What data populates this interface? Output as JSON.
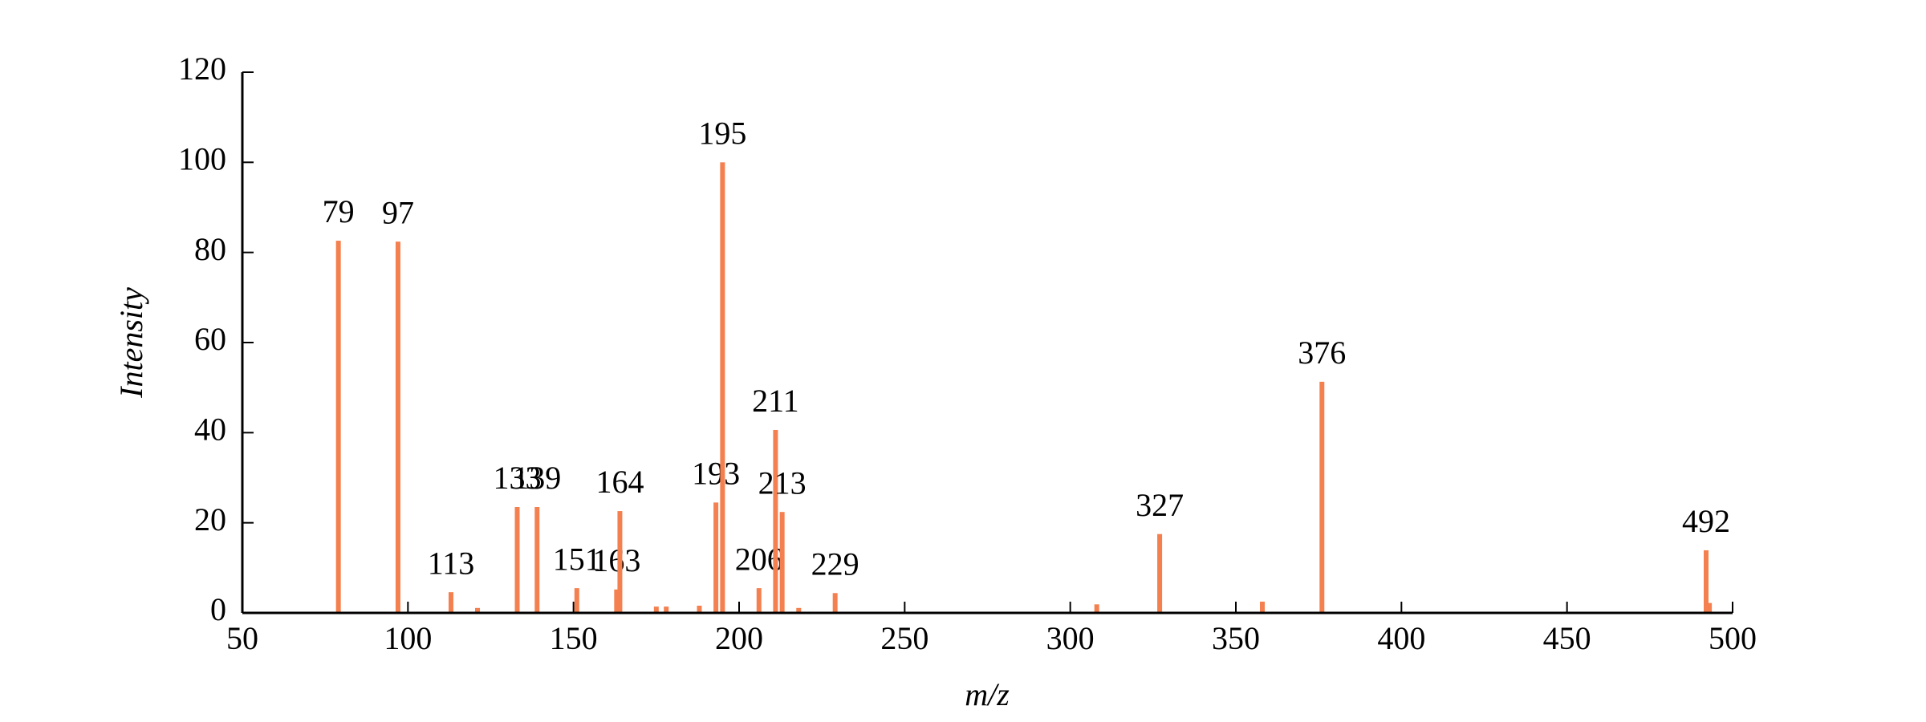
{
  "chart_data": {
    "type": "spectrum",
    "x_label": "m/z",
    "y_label": "Intensity",
    "color": "#f4804f",
    "x": [
      79,
      97,
      113,
      121,
      133,
      139,
      151,
      163,
      164,
      175,
      178,
      188,
      193,
      195,
      206,
      211,
      213,
      218,
      229,
      308,
      327,
      358,
      376,
      492,
      493
    ],
    "values": [
      82.6,
      82.4,
      4.6,
      1.1,
      23.5,
      23.5,
      5.5,
      5.2,
      22.6,
      1.4,
      1.4,
      1.6,
      24.5,
      100,
      5.5,
      40.6,
      22.4,
      1.1,
      4.4,
      1.9,
      17.5,
      2.5,
      51.3,
      13.9,
      2.2
    ],
    "labels": [
      "79",
      "97",
      "113",
      null,
      "133",
      "139",
      "151",
      "163",
      "164",
      null,
      null,
      null,
      "193",
      "195",
      "206",
      "211",
      "213",
      null,
      "229",
      null,
      "327",
      null,
      "376",
      "492",
      null
    ],
    "xlim": [
      50,
      500
    ],
    "xticks": [
      50,
      100,
      150,
      200,
      250,
      300,
      350,
      400,
      450,
      500
    ],
    "ylim": [
      0,
      120
    ],
    "yticks": [
      0,
      20,
      40,
      60,
      80,
      100,
      120
    ]
  }
}
